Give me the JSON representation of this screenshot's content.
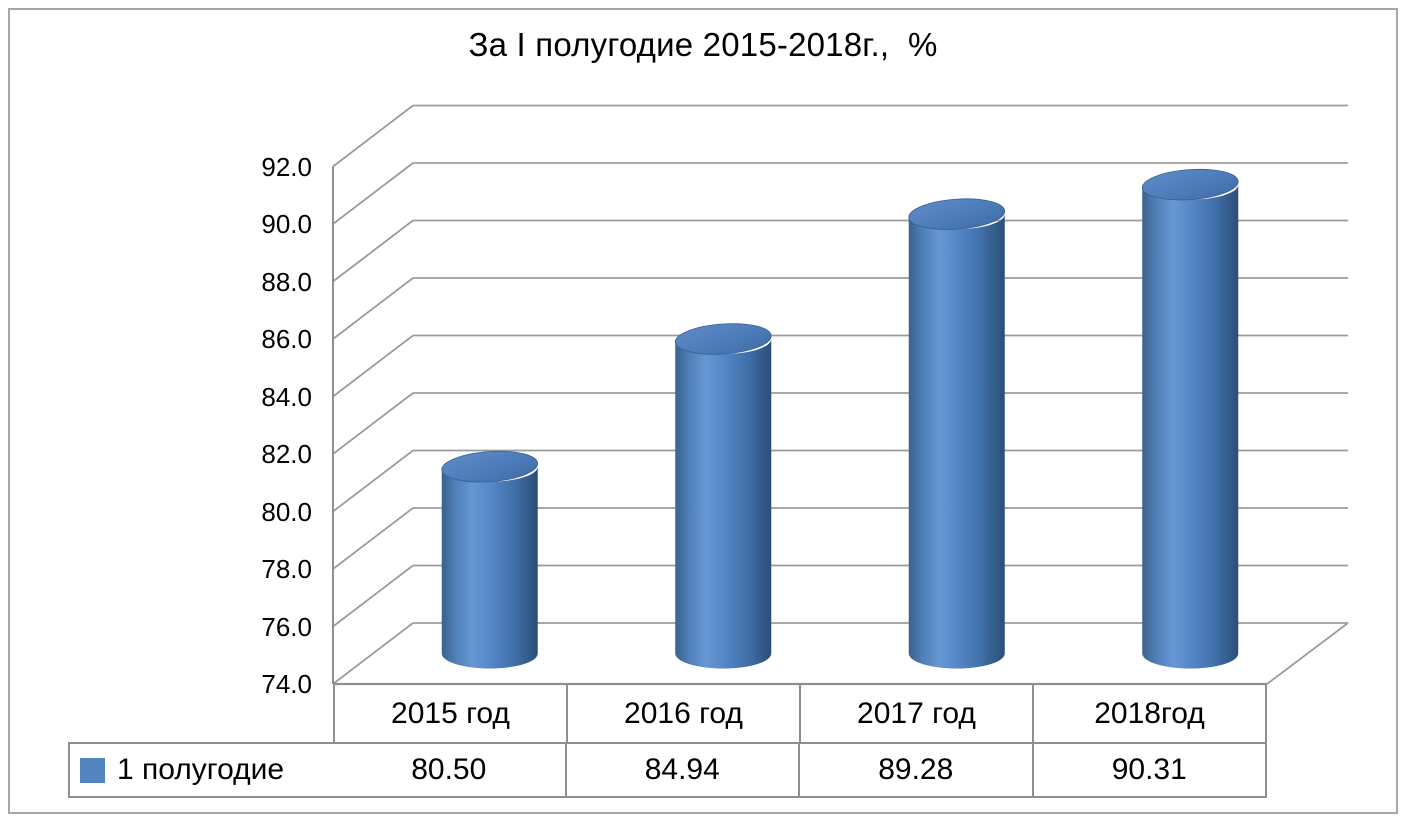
{
  "window": {
    "background": "#ffffff",
    "frame_border_color": "#a6a6a6"
  },
  "chart_data": {
    "type": "bar",
    "subtype": "3d-cylinder",
    "title": "За I полугодие 2015-2018г.,  %",
    "categories": [
      "2015 год",
      "2016 год",
      "2017 год",
      "2018год"
    ],
    "series": [
      {
        "name": "1 полугодие",
        "values": [
          80.5,
          84.94,
          89.28,
          90.31
        ]
      }
    ],
    "value_labels": [
      "80.50",
      "84.94",
      "89.28",
      "90.31"
    ],
    "ylim": [
      74.0,
      92.0
    ],
    "ytick_step": 2.0,
    "yticks": [
      "74.0",
      "76.0",
      "78.0",
      "80.0",
      "82.0",
      "84.0",
      "86.0",
      "88.0",
      "90.0",
      "92.0"
    ],
    "grid": true,
    "legend_position": "bottom-table-row",
    "colors": {
      "bar": "#4F81BD",
      "bar_light": "#6697d4",
      "bar_dark": "#2b4e77",
      "bar_top": "#4d7cba",
      "gridline": "#9b9b9b",
      "axis": "#8f8f8f",
      "table_border": "#8f8f8f",
      "legend_marker": "#5585c1",
      "text": "#000000"
    }
  }
}
